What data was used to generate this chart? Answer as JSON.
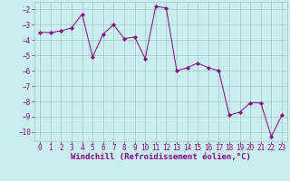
{
  "x": [
    0,
    1,
    2,
    3,
    4,
    5,
    6,
    7,
    8,
    9,
    10,
    11,
    12,
    13,
    14,
    15,
    16,
    17,
    18,
    19,
    20,
    21,
    22,
    23
  ],
  "y": [
    -3.5,
    -3.5,
    -3.4,
    -3.2,
    -2.3,
    -5.1,
    -3.6,
    -3.0,
    -3.9,
    -3.8,
    -5.2,
    -1.8,
    -1.9,
    -6.0,
    -5.8,
    -5.5,
    -5.8,
    -6.0,
    -8.9,
    -8.7,
    -8.1,
    -8.1,
    -10.3,
    -8.9
  ],
  "line_color": "#880088",
  "marker_color": "#880088",
  "bg_color": "#c8eef0",
  "grid_color": "#a0c8c0",
  "tick_label_color": "#880088",
  "xlabel": "Windchill (Refroidissement éolien,°C)",
  "xlabel_color": "#880088",
  "xlim": [
    -0.5,
    23.5
  ],
  "ylim": [
    -10.6,
    -1.5
  ],
  "yticks": [
    -2,
    -3,
    -4,
    -5,
    -6,
    -7,
    -8,
    -9,
    -10
  ],
  "xticks": [
    0,
    1,
    2,
    3,
    4,
    5,
    6,
    7,
    8,
    9,
    10,
    11,
    12,
    13,
    14,
    15,
    16,
    17,
    18,
    19,
    20,
    21,
    22,
    23
  ],
  "font_size_label": 6.5,
  "font_size_tick": 5.5
}
